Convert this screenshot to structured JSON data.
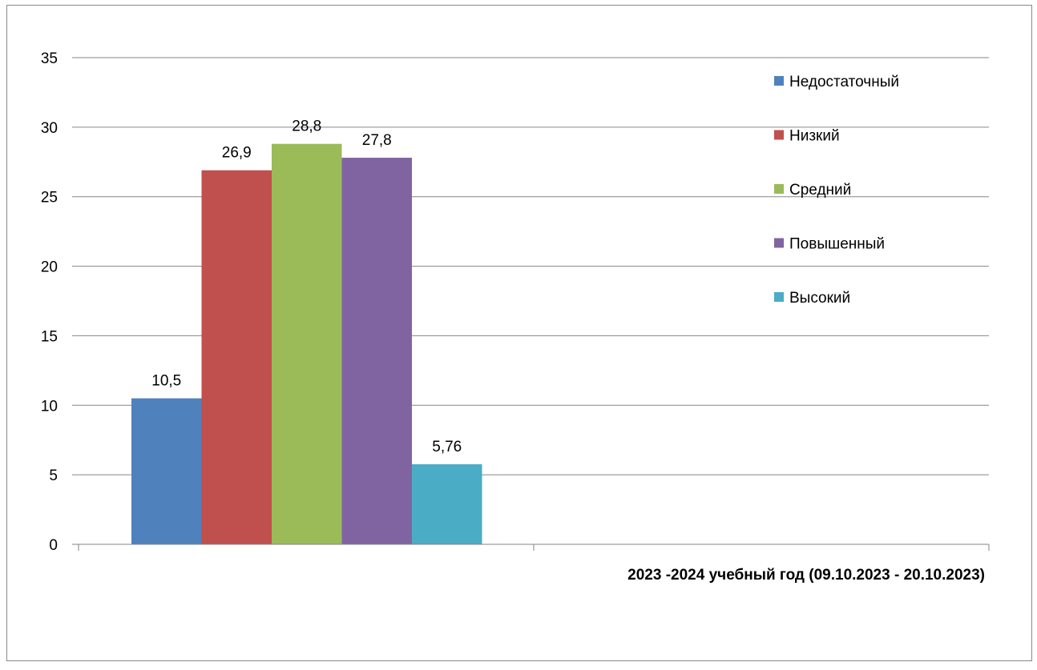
{
  "chart_data": {
    "type": "bar",
    "categories": [
      "2023 -2024 учебный год (09.10.2023 - 20.10.2023)"
    ],
    "series": [
      {
        "name": "Недостаточный",
        "values": [
          10.5
        ],
        "label": "10,5",
        "color": "#4F81BD"
      },
      {
        "name": "Низкий",
        "values": [
          26.9
        ],
        "label": "26,9",
        "color": "#C0504D"
      },
      {
        "name": "Средний",
        "values": [
          28.8
        ],
        "label": "28,8",
        "color": "#9BBB59"
      },
      {
        "name": "Повышенный",
        "values": [
          27.8
        ],
        "label": "27,8",
        "color": "#8064A2"
      },
      {
        "name": "Высокий",
        "values": [
          5.76
        ],
        "label": "5,76",
        "color": "#4BACC6"
      }
    ],
    "ylim": [
      0,
      35
    ],
    "yticks": [
      "0",
      "5",
      "10",
      "15",
      "20",
      "25",
      "30",
      "35"
    ],
    "grid": true,
    "legend_position": "right",
    "title": "",
    "xlabel": "",
    "ylabel": ""
  }
}
